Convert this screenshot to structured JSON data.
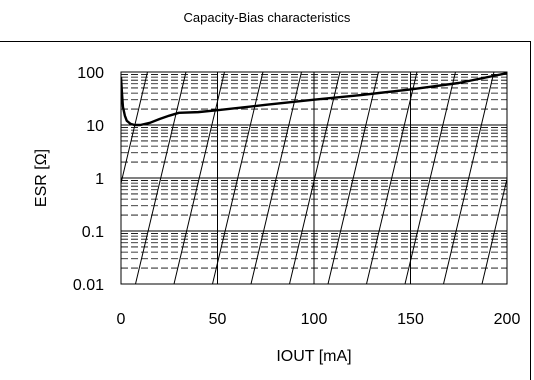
{
  "chart_data": {
    "type": "line",
    "title": "Capacity-Bias characteristics",
    "xlabel": "IOUT [mA]",
    "ylabel": "ESR [Ω]",
    "xlim": [
      0,
      200
    ],
    "ylim": [
      0.01,
      100
    ],
    "y_scale": "log",
    "grid": true,
    "x_ticks": [
      0,
      50,
      100,
      150,
      200
    ],
    "x_tick_labels": [
      "0",
      "50",
      "100",
      "150",
      "200"
    ],
    "y_ticks": [
      0.01,
      0.1,
      1,
      10,
      100
    ],
    "y_tick_labels": [
      "0.01",
      "0.1",
      "1",
      "10",
      "100"
    ],
    "series": [
      {
        "x": [
          0,
          0.5,
          1,
          2,
          3,
          5,
          7,
          10,
          15,
          20,
          25,
          30,
          40,
          50,
          75,
          100,
          125,
          150,
          175,
          200
        ],
        "y": [
          80,
          40,
          22,
          15,
          12,
          10.5,
          10,
          10,
          11,
          13,
          15,
          17,
          17.5,
          19,
          24,
          30,
          37,
          47,
          62,
          95
        ]
      }
    ]
  }
}
